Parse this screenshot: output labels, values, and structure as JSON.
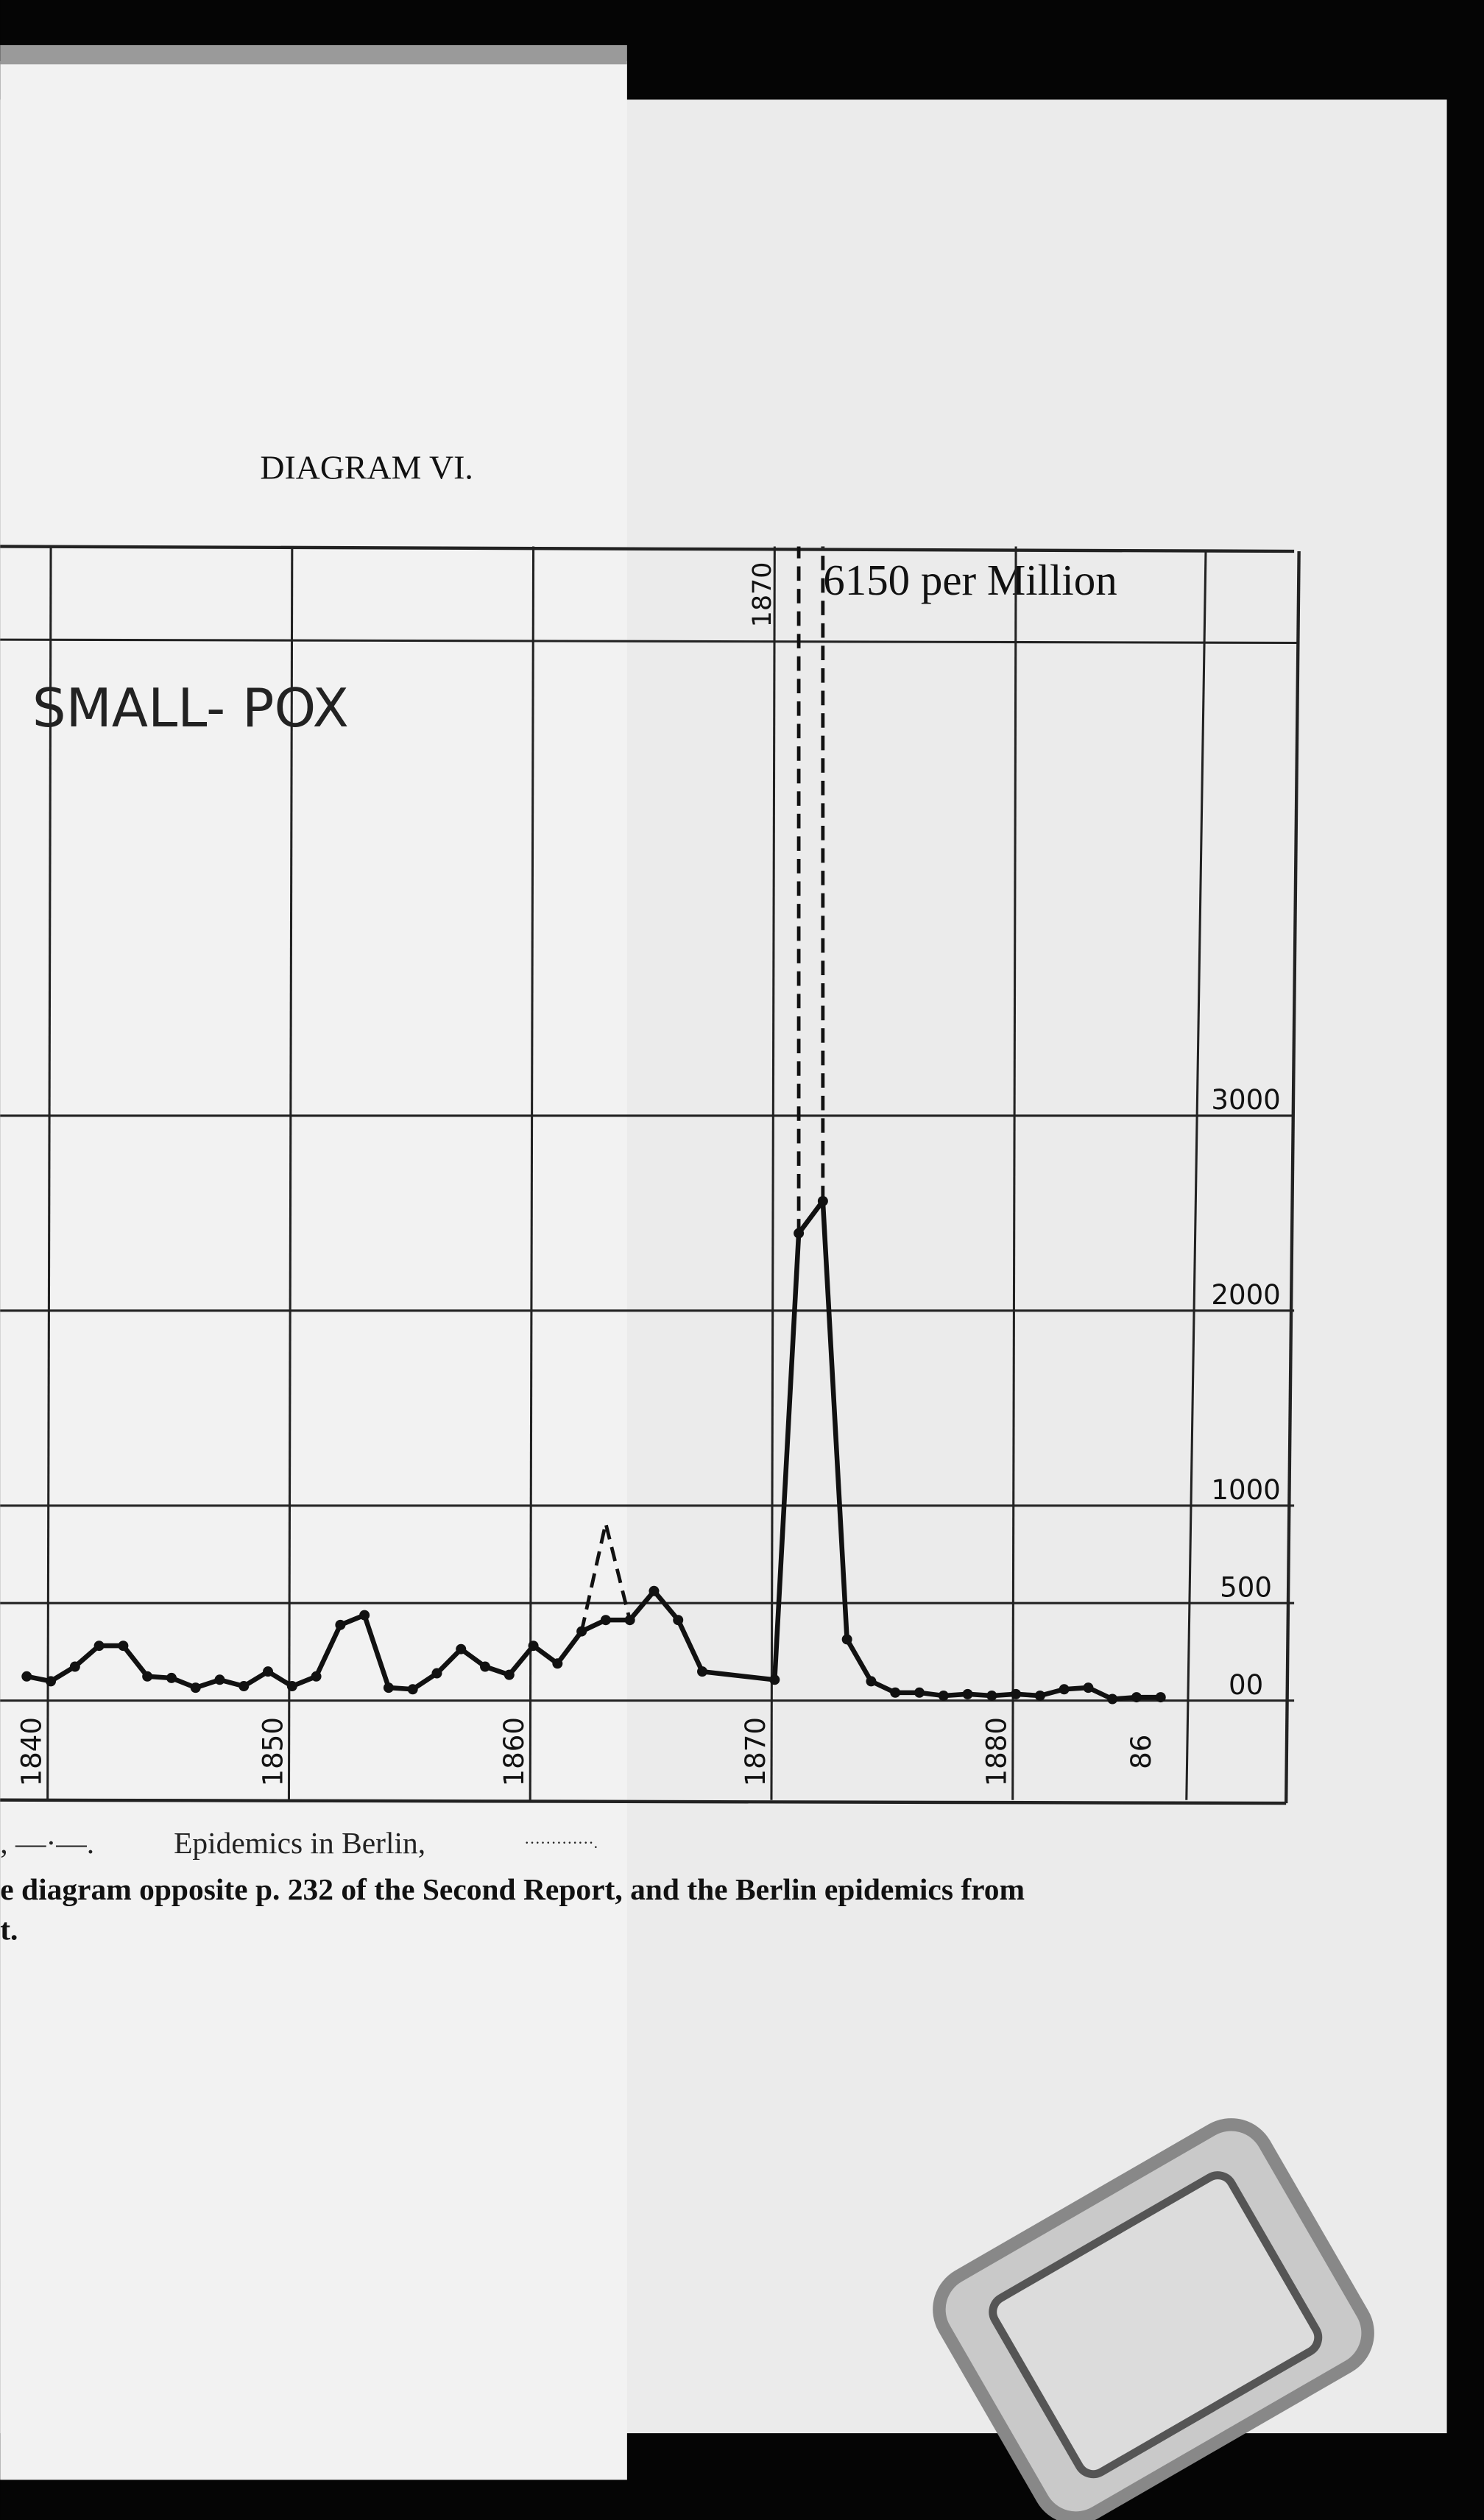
{
  "chart_data": {
    "type": "line",
    "title": "DIAGRAM VI.",
    "subtitle": "SMALL- POX",
    "annotation": "6150 per Million",
    "legend_text": ", —·—.",
    "legend_end": "·············.",
    "caption": [
      "e diagram opposite p. 232 of the Second Report, and the Berlin epidemics from",
      "t."
    ],
    "xlim": [
      1837.9,
      1891.2
    ],
    "ylim": [
      -510,
      5920
    ],
    "xticks": [
      1840,
      1850,
      1860,
      1870,
      1880,
      {
        "value": 1886,
        "label": "86"
      }
    ],
    "x2ticks": [
      1870
    ],
    "yticks": [
      {
        "value": 0,
        "label": "00"
      },
      500,
      1000,
      2000,
      3000
    ],
    "grid": true,
    "series": [
      {
        "color": "#111111",
        "style": "solid",
        "markers": true,
        "x": [
          1839,
          1840,
          1841,
          1842,
          1843,
          1844,
          1845,
          1846,
          1847,
          1848,
          1849,
          1850,
          1851,
          1852,
          1853,
          1854,
          1855,
          1856,
          1857,
          1858,
          1859,
          1860,
          1861,
          1862,
          1863,
          1864,
          1865,
          1866,
          1867,
          1870,
          1871,
          1872,
          1873,
          1874,
          1875,
          1876,
          1877,
          1878,
          1879,
          1880,
          1881,
          1882,
          1883,
          1884,
          1885,
          1886
        ],
        "values": [
          124,
          99,
          174,
          281,
          281,
          124,
          116,
          66,
          107,
          74,
          149,
          74,
          124,
          388,
          438,
          66,
          58,
          140,
          264,
          174,
          132,
          281,
          190,
          355,
          413,
          413,
          562,
          413,
          149,
          107,
          2397,
          2562,
          314,
          99,
          41,
          41,
          25,
          33,
          25,
          33,
          25,
          58,
          66,
          8,
          17,
          17
        ]
      },
      {
        "name": "Epidemics in Berlin,",
        "color": "#111111",
        "style": "dashed",
        "markers": false,
        "x": [
          1862,
          1863,
          1864,
          1864,
          1871,
          1871,
          1872,
          1872
        ],
        "values": [
          355,
          909,
          413,
          null,
          2397,
          6150,
          6150,
          2562
        ]
      }
    ]
  }
}
